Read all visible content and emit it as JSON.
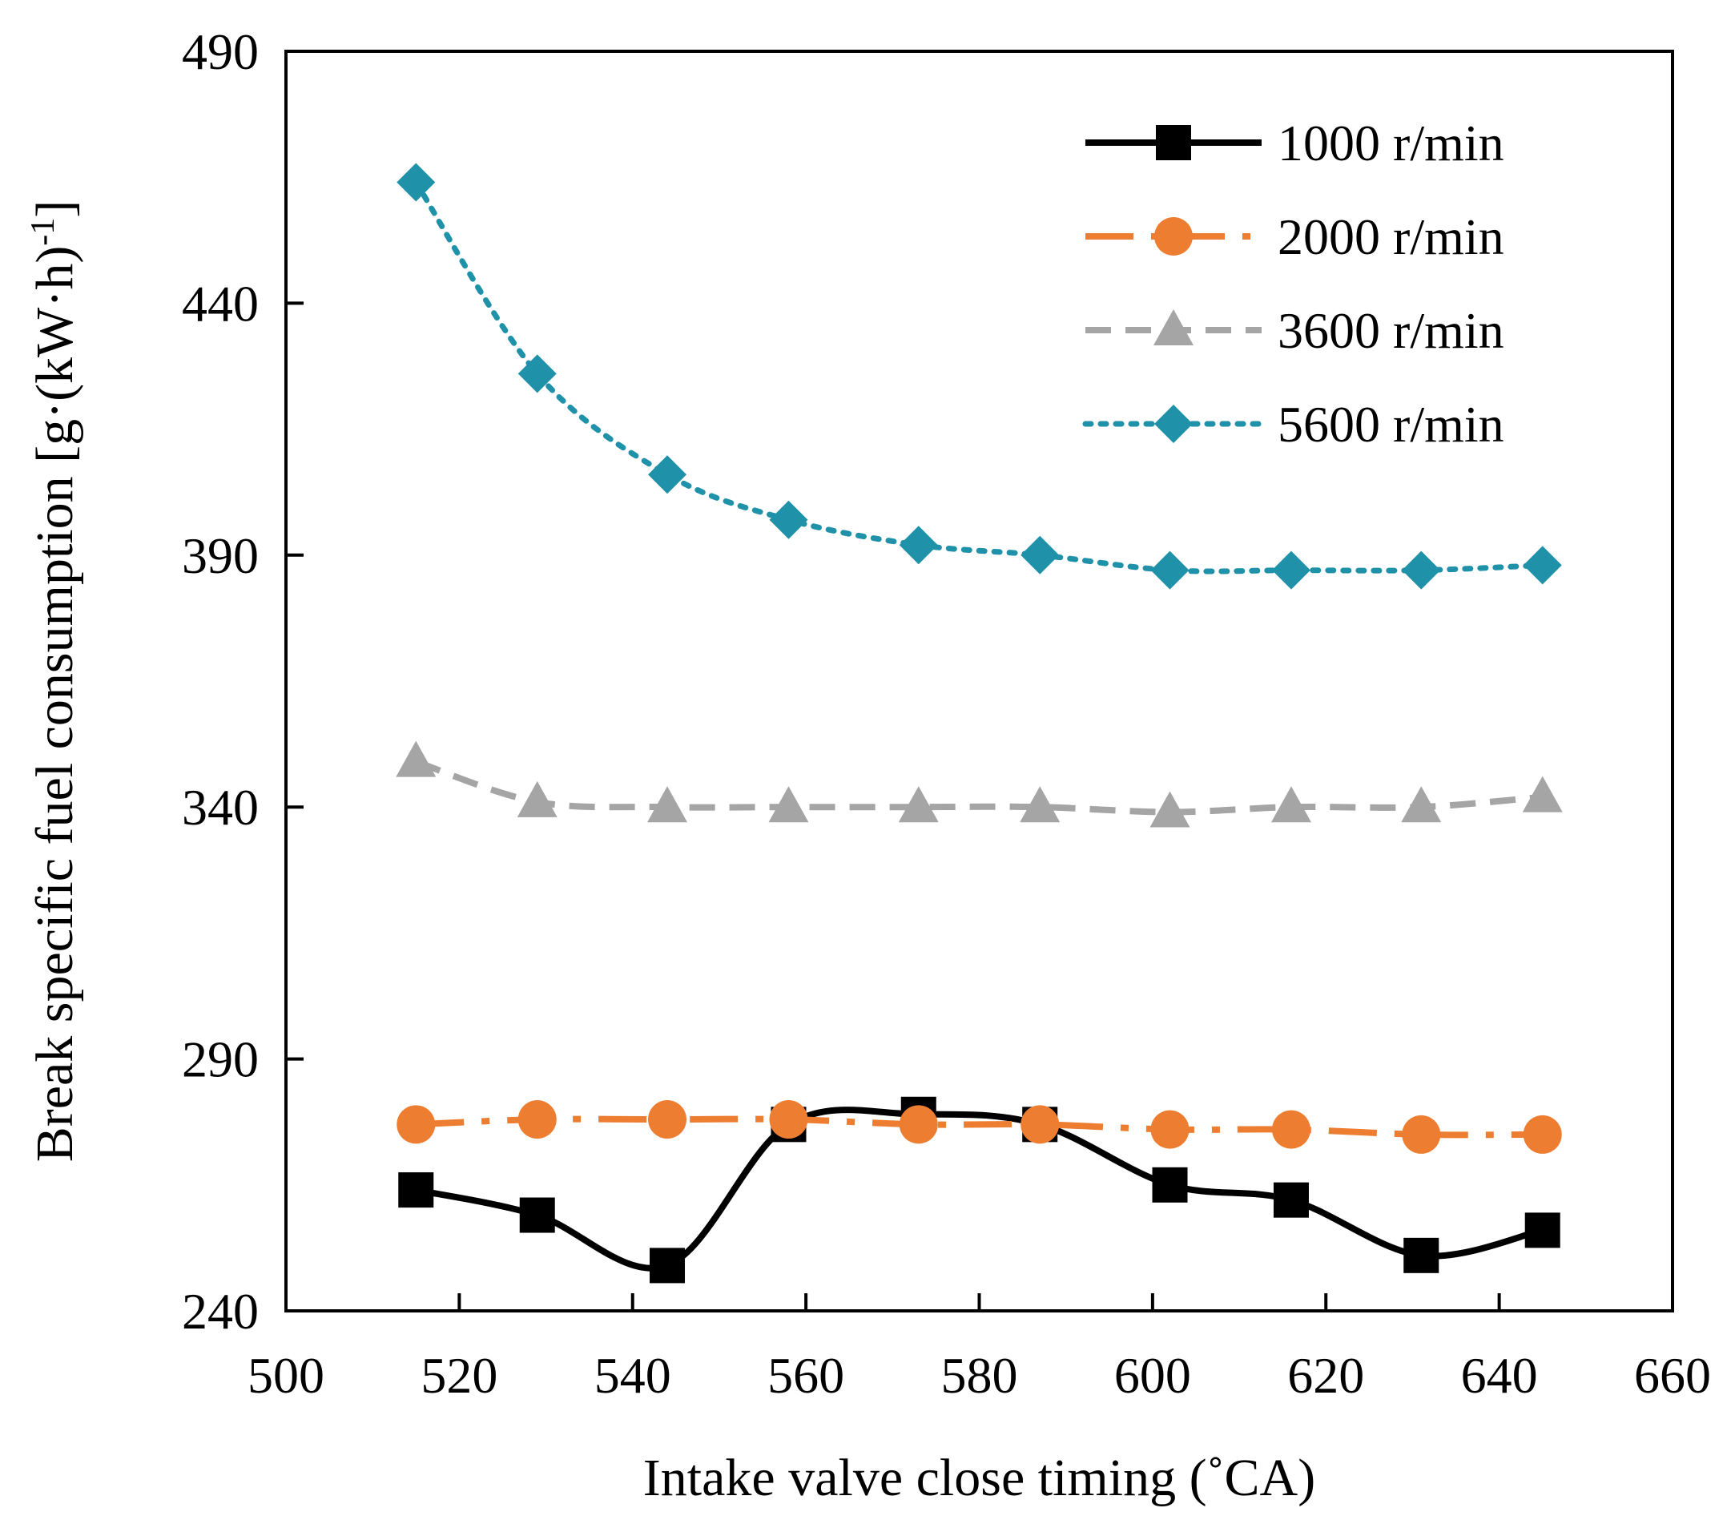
{
  "chart_data": {
    "type": "line",
    "xlabel": "Intake valve close timing (˚CA)",
    "ylabel": "Break specific fuel consumption [g·(kW·h)",
    "ylabel_superscript": "-1",
    "ylabel_close": "]",
    "xlim": [
      500,
      660
    ],
    "ylim": [
      240,
      490
    ],
    "xticks": [
      500,
      520,
      540,
      560,
      580,
      600,
      620,
      640,
      660
    ],
    "yticks": [
      240,
      290,
      340,
      390,
      440,
      490
    ],
    "grid": false,
    "legend_position": "top-right",
    "x": [
      515,
      529,
      544,
      558,
      573,
      587,
      602,
      616,
      631,
      645
    ],
    "series": [
      {
        "name": "1000 r/min",
        "values": [
          264,
          259,
          249,
          277,
          279,
          277,
          265,
          262,
          251,
          256
        ],
        "color": "#000000",
        "marker": "square",
        "dash": "solid"
      },
      {
        "name": "2000 r/min",
        "values": [
          277,
          278,
          278,
          278,
          277,
          277,
          276,
          276,
          275,
          275
        ],
        "color": "#ED7D31",
        "marker": "circle",
        "dash": "dashdot"
      },
      {
        "name": "3600 r/min",
        "values": [
          349,
          341,
          340,
          340,
          340,
          340,
          339,
          340,
          340,
          342
        ],
        "color": "#A5A5A5",
        "marker": "triangle",
        "dash": "dashed"
      },
      {
        "name": "5600 r/min",
        "values": [
          464,
          426,
          406,
          397,
          392,
          390,
          387,
          387,
          387,
          388
        ],
        "color": "#1F91A8",
        "marker": "diamond",
        "dash": "dotted"
      }
    ]
  }
}
